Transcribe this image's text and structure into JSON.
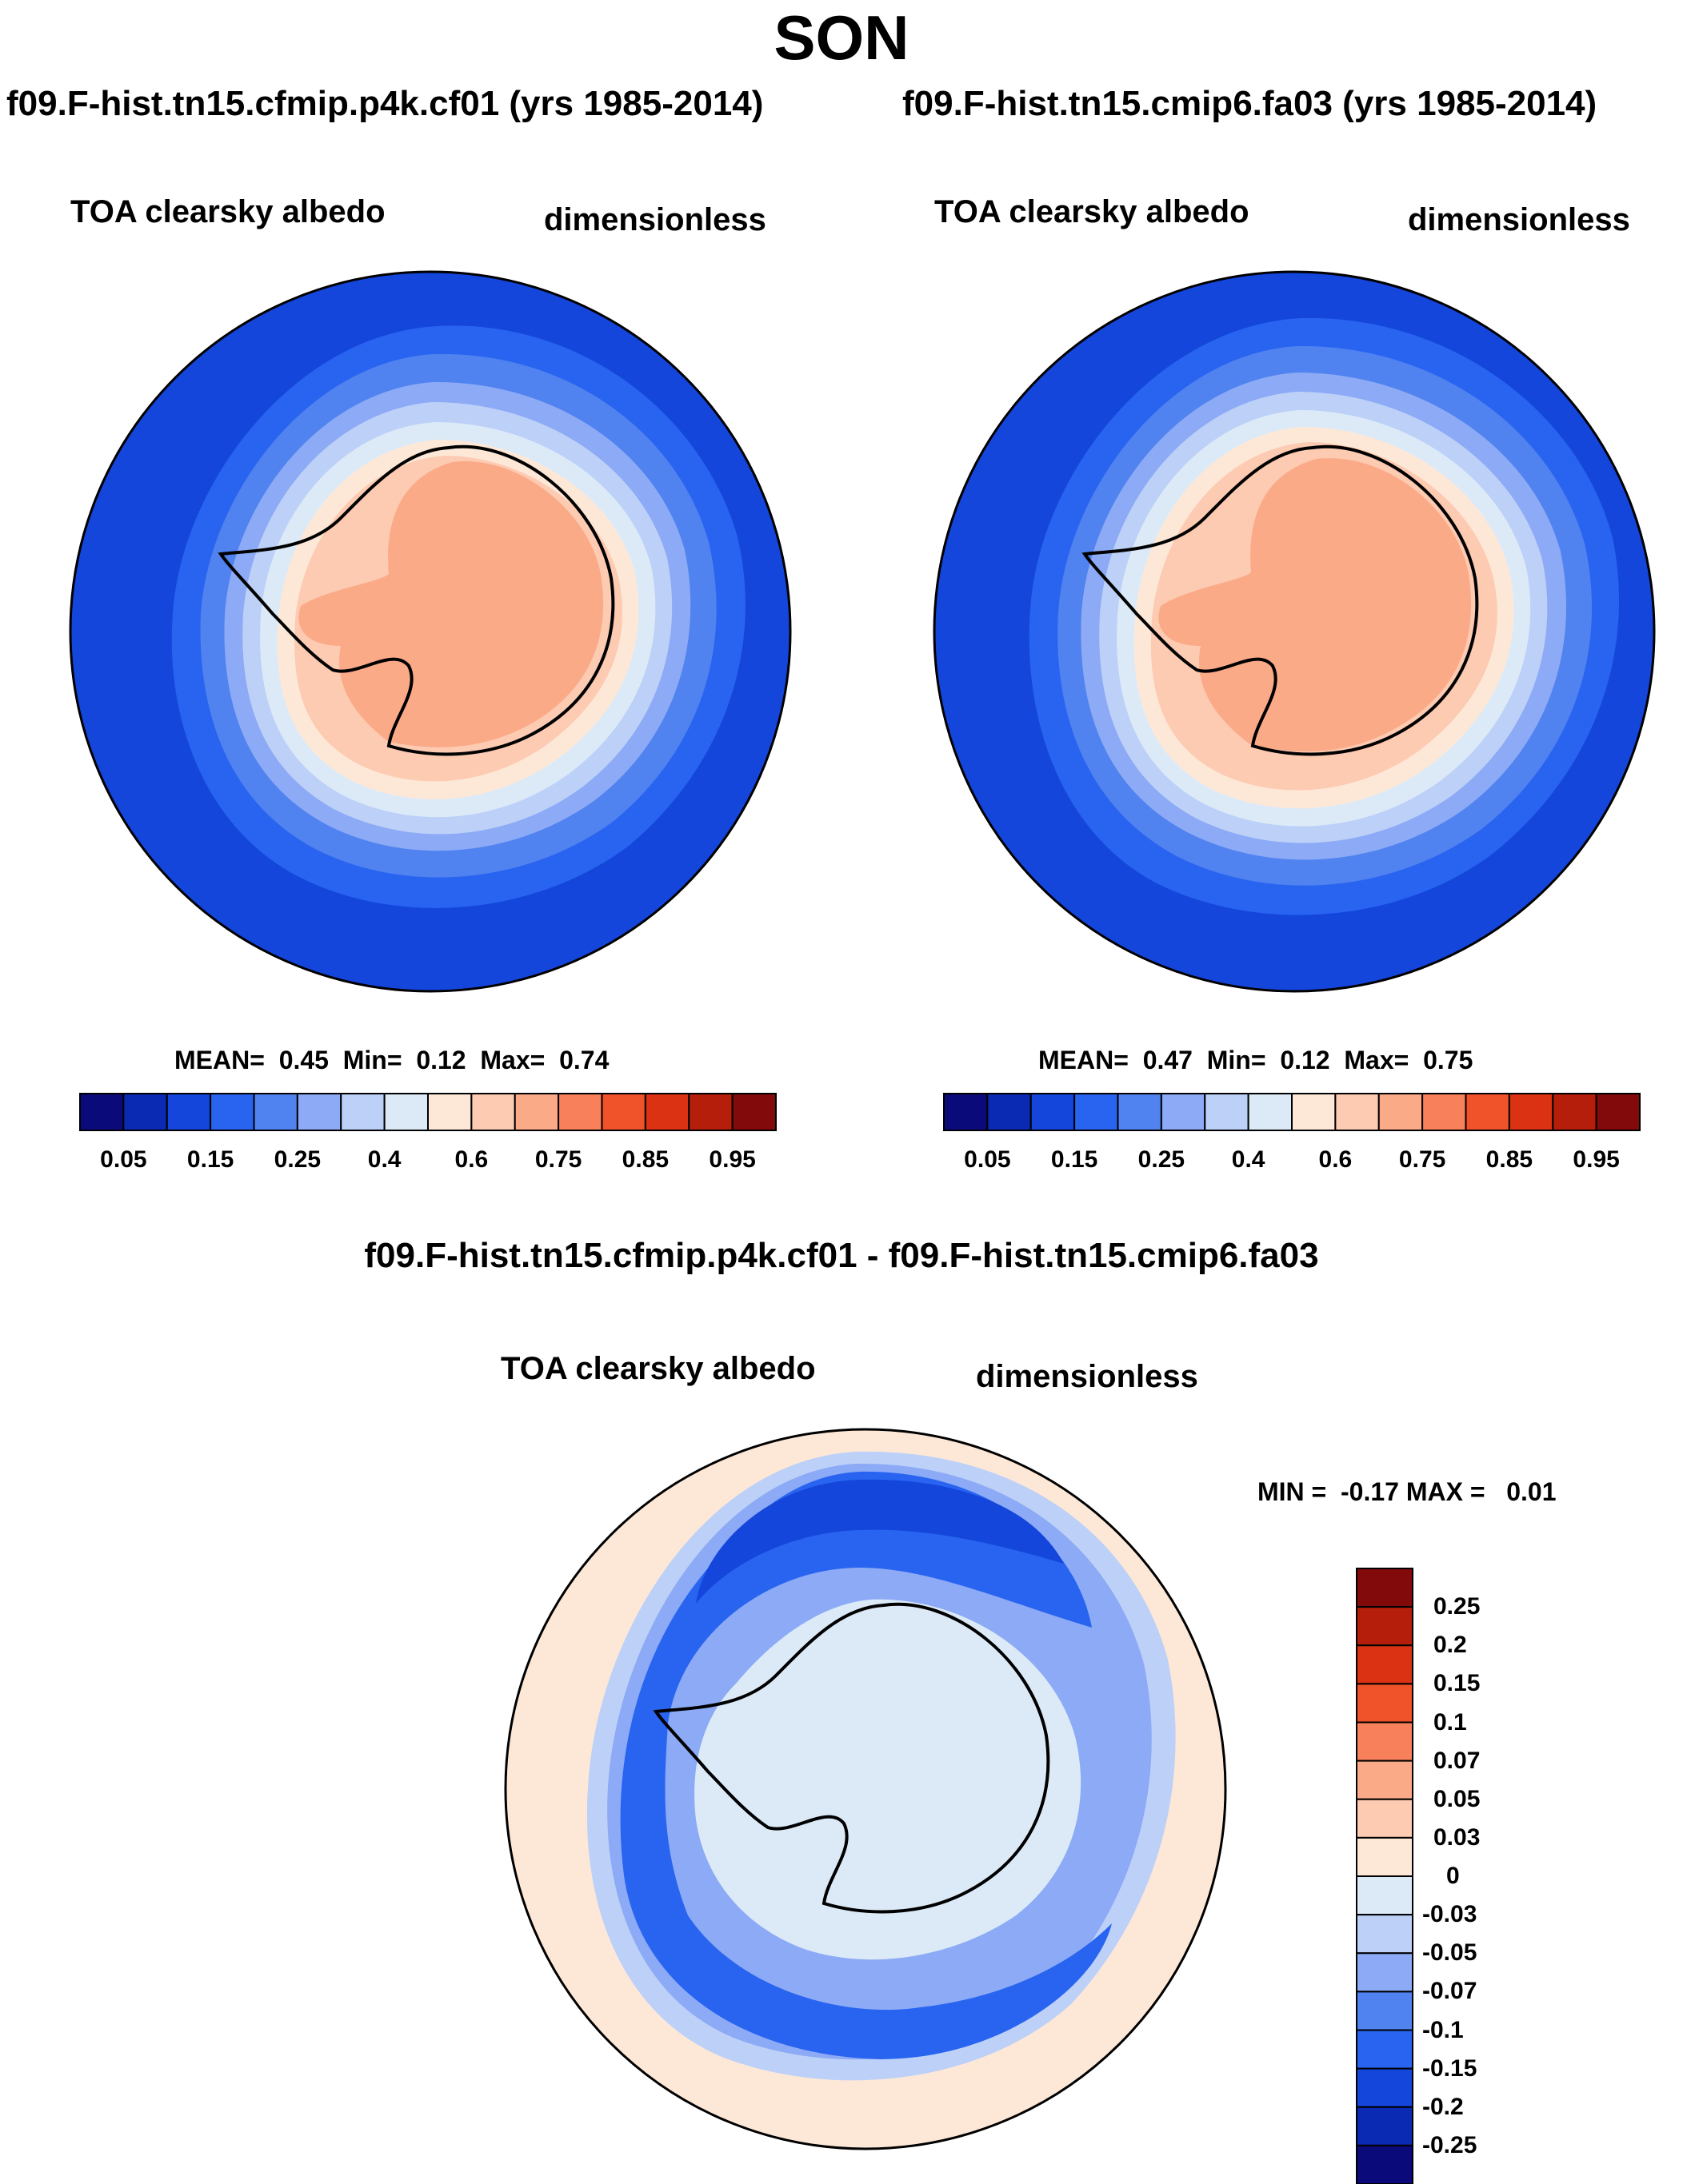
{
  "page": {
    "title": "SON"
  },
  "panels": [
    {
      "case": "f09.F-hist.tn15.cfmip.p4k.cf01 (yrs 1985-2014)",
      "variable": "TOA clearsky albedo",
      "units": "dimensionless",
      "stats": {
        "mean_label": "MEAN=",
        "mean": "0.45",
        "min_label": "Min=",
        "min": "0.12",
        "max_label": "Max=",
        "max": "0.74"
      }
    },
    {
      "case": "f09.F-hist.tn15.cmip6.fa03 (yrs 1985-2014)",
      "variable": "TOA clearsky albedo",
      "units": "dimensionless",
      "stats": {
        "mean_label": "MEAN=",
        "mean": "0.47",
        "min_label": "Min=",
        "min": "0.12",
        "max_label": "Max=",
        "max": "0.75"
      }
    },
    {
      "case": "f09.F-hist.tn15.cfmip.p4k.cf01 - f09.F-hist.tn15.cmip6.fa03",
      "variable": "TOA clearsky albedo",
      "units": "dimensionless",
      "stats": {
        "text": "MIN =  -0.17 MAX =   0.01"
      }
    }
  ],
  "colorbars": {
    "main": {
      "colors": [
        "#0a0a7a",
        "#0a2ab4",
        "#1446dc",
        "#2864f0",
        "#5082f0",
        "#8caaf5",
        "#bcd0f8",
        "#dceaf8",
        "#fde8d8",
        "#fdcab2",
        "#fbaa88",
        "#f8805a",
        "#f0522a",
        "#dc3214",
        "#b41e0a",
        "#820a0a"
      ],
      "ticks": [
        "0.05",
        "0.15",
        "0.25",
        "0.4",
        "0.6",
        "0.75",
        "0.85",
        "0.95"
      ]
    },
    "diff": {
      "colors": [
        "#820a0a",
        "#b41e0a",
        "#dc3214",
        "#f0522a",
        "#f8805a",
        "#fbaa88",
        "#fdcab2",
        "#fde8d8",
        "#dceaf8",
        "#bcd0f8",
        "#8caaf5",
        "#5082f0",
        "#2864f0",
        "#1446dc",
        "#0a2ab4",
        "#0a0a7a"
      ],
      "ticks": [
        "0.25",
        "0.2",
        "0.15",
        "0.1",
        "0.07",
        "0.05",
        "0.03",
        "0",
        "-0.03",
        "-0.05",
        "-0.07",
        "-0.1",
        "-0.15",
        "-0.2",
        "-0.25"
      ]
    }
  }
}
